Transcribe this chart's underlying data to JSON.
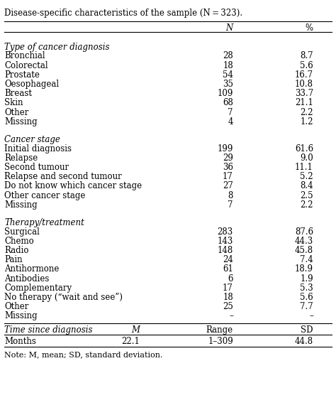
{
  "title": "Disease-specific characteristics of the sample (N = 323).",
  "sections": [
    {
      "section_header": "Type of cancer diagnosis",
      "rows": [
        [
          "Bronchial",
          "28",
          "8.7"
        ],
        [
          "Colorectal",
          "18",
          "5.6"
        ],
        [
          "Prostate",
          "54",
          "16.7"
        ],
        [
          "Oesophageal",
          "35",
          "10.8"
        ],
        [
          "Breast",
          "109",
          "33.7"
        ],
        [
          "Skin",
          "68",
          "21.1"
        ],
        [
          "Other",
          "7",
          "2.2"
        ],
        [
          "Missing",
          "4",
          "1.2"
        ]
      ]
    },
    {
      "section_header": "Cancer stage",
      "rows": [
        [
          "Initial diagnosis",
          "199",
          "61.6"
        ],
        [
          "Relapse",
          "29",
          "9.0"
        ],
        [
          "Second tumour",
          "36",
          "11.1"
        ],
        [
          "Relapse and second tumour",
          "17",
          "5.2"
        ],
        [
          "Do not know which cancer stage",
          "27",
          "8.4"
        ],
        [
          "Other cancer stage",
          "8",
          "2.5"
        ],
        [
          "Missing",
          "7",
          "2.2"
        ]
      ]
    },
    {
      "section_header": "Therapy/treatment",
      "rows": [
        [
          "Surgical",
          "283",
          "87.6"
        ],
        [
          "Chemo",
          "143",
          "44.3"
        ],
        [
          "Radio",
          "148",
          "45.8"
        ],
        [
          "Pain",
          "24",
          "7.4"
        ],
        [
          "Antihormone",
          "61",
          "18.9"
        ],
        [
          "Antibodies",
          "6",
          "1.9"
        ],
        [
          "Complementary",
          "17",
          "5.3"
        ],
        [
          "No therapy (“wait and see”)",
          "18",
          "5.6"
        ],
        [
          "Other",
          "25",
          "7.7"
        ],
        [
          "Missing",
          "–",
          "–"
        ]
      ]
    }
  ],
  "bottom_section_header": "Time since diagnosis",
  "bottom_col_headers": [
    "",
    "M",
    "Range",
    "SD"
  ],
  "bottom_row": [
    "Months",
    "22.1",
    "1–309",
    "44.8"
  ],
  "note": "Note: M, mean; SD, standard deviation.",
  "bg_color": "white",
  "text_color": "black",
  "line_color": "black",
  "font_size": 8.5
}
